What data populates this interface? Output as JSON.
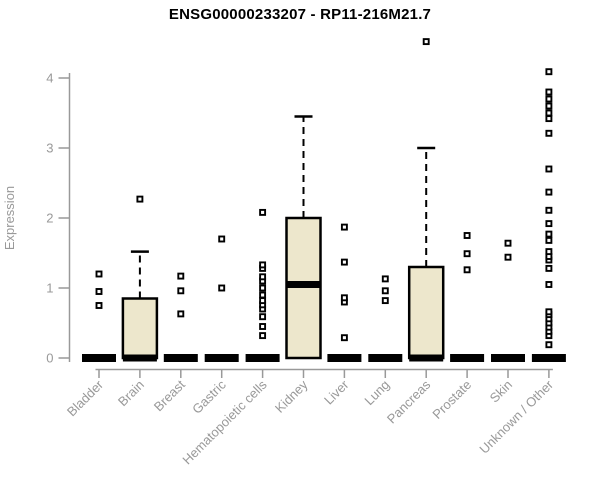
{
  "title": "ENSG00000233207 - RP11-216M21.7",
  "chart_data": {
    "type": "boxplot",
    "title": "ENSG00000233207 - RP11-216M21.7",
    "xlabel": "",
    "ylabel": "Expression",
    "ylim": [
      0,
      4.6
    ],
    "yticks": [
      0,
      1,
      2,
      3,
      4
    ],
    "grid": false,
    "legend": "none",
    "categories": [
      "Bladder",
      "Brain",
      "Breast",
      "Gastric",
      "Hematopoietic cells",
      "Kidney",
      "Liver",
      "Lung",
      "Pancreas",
      "Prostate",
      "Skin",
      "Unknown / Other"
    ],
    "boxes": [
      {
        "category": "Bladder",
        "low": 0,
        "q1": 0,
        "median": 0,
        "q3": 0,
        "high": 0,
        "outliers": [
          0.75,
          0.95,
          1.2
        ]
      },
      {
        "category": "Brain",
        "low": 0,
        "q1": 0,
        "median": 0,
        "q3": 0.85,
        "high": 1.52,
        "outliers": [
          2.27
        ]
      },
      {
        "category": "Breast",
        "low": 0,
        "q1": 0,
        "median": 0,
        "q3": 0,
        "high": 0,
        "outliers": [
          0.63,
          0.96,
          1.17
        ]
      },
      {
        "category": "Gastric",
        "low": 0,
        "q1": 0,
        "median": 0,
        "q3": 0,
        "high": 0,
        "outliers": [
          1.0,
          1.7
        ]
      },
      {
        "category": "Hematopoietic cells",
        "low": 0,
        "q1": 0,
        "median": 0,
        "q3": 0,
        "high": 0,
        "outliers": [
          0.32,
          0.45,
          0.59,
          0.7,
          0.76,
          0.82,
          0.9,
          1.0,
          1.1,
          1.16,
          1.28,
          1.33,
          2.08
        ]
      },
      {
        "category": "Kidney",
        "low": 0,
        "q1": 0,
        "median": 1.05,
        "q3": 2.0,
        "high": 3.45,
        "outliers": []
      },
      {
        "category": "Liver",
        "low": 0,
        "q1": 0,
        "median": 0,
        "q3": 0,
        "high": 0,
        "outliers": [
          0.29,
          0.8,
          0.86,
          1.37,
          1.87
        ]
      },
      {
        "category": "Lung",
        "low": 0,
        "q1": 0,
        "median": 0,
        "q3": 0,
        "high": 0,
        "outliers": [
          0.82,
          0.96,
          1.13
        ]
      },
      {
        "category": "Pancreas",
        "low": 0,
        "q1": 0,
        "median": 0,
        "q3": 1.3,
        "high": 3.0,
        "outliers": [
          4.52
        ]
      },
      {
        "category": "Prostate",
        "low": 0,
        "q1": 0,
        "median": 0,
        "q3": 0,
        "high": 0,
        "outliers": [
          1.26,
          1.49,
          1.75
        ]
      },
      {
        "category": "Skin",
        "low": 0,
        "q1": 0,
        "median": 0,
        "q3": 0,
        "high": 0,
        "outliers": [
          1.44,
          1.64
        ]
      },
      {
        "category": "Unknown / Other",
        "low": 0,
        "q1": 0,
        "median": 0,
        "q3": 0,
        "high": 0,
        "outliers": [
          0.19,
          0.32,
          0.38,
          0.44,
          0.5,
          0.56,
          0.62,
          0.66,
          1.05,
          1.28,
          1.4,
          1.45,
          1.52,
          1.68,
          1.77,
          1.92,
          2.11,
          2.37,
          2.7,
          3.21,
          3.42,
          3.5,
          3.6,
          3.7,
          3.8,
          4.09
        ]
      }
    ],
    "colors": {
      "box_fill": "#EDE7CC",
      "box_stroke": "#000000",
      "median": "#000000",
      "outlier_stroke": "#000000",
      "outlier_fill": "#FFFFFF",
      "axis": "#999999",
      "tick_label": "#999999",
      "title": "#000000",
      "background": "#FFFFFF"
    }
  }
}
